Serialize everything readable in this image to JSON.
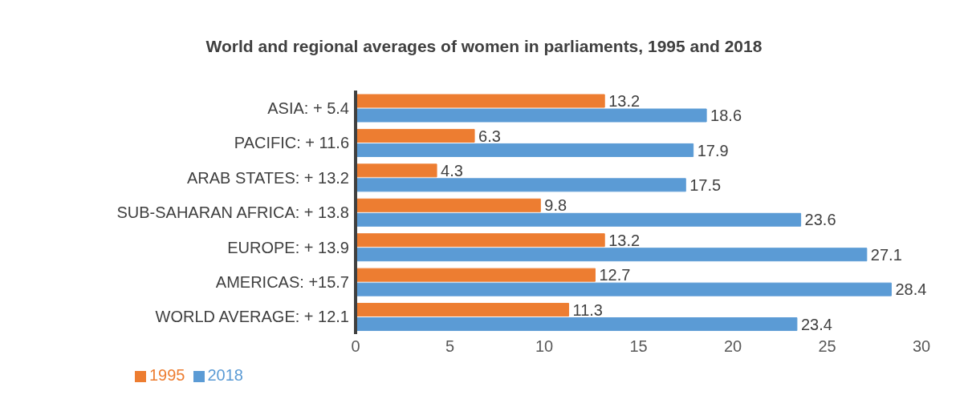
{
  "chart_data": {
    "type": "bar",
    "orientation": "horizontal",
    "title": "World and regional averages of women in parliaments, 1995 and 2018",
    "categories": [
      "ASIA: + 5.4",
      "PACIFIC: + 11.6",
      "ARAB STATES: + 13.2",
      "SUB-SAHARAN AFRICA: + 13.8",
      "EUROPE: + 13.9",
      "AMERICAS: +15.7",
      "WORLD AVERAGE: + 12.1"
    ],
    "series": [
      {
        "name": "1995",
        "color": "#ed7d31",
        "values": [
          13.2,
          6.3,
          4.3,
          9.8,
          13.2,
          12.7,
          11.3
        ]
      },
      {
        "name": "2018",
        "color": "#5b9bd5",
        "values": [
          18.6,
          17.9,
          17.5,
          23.6,
          27.1,
          28.4,
          23.4
        ]
      }
    ],
    "xlim": [
      0,
      30
    ],
    "xticks": [
      0,
      5,
      10,
      15,
      20,
      25,
      30
    ],
    "data_labels": true,
    "grid": false,
    "legend": "bottom left"
  }
}
